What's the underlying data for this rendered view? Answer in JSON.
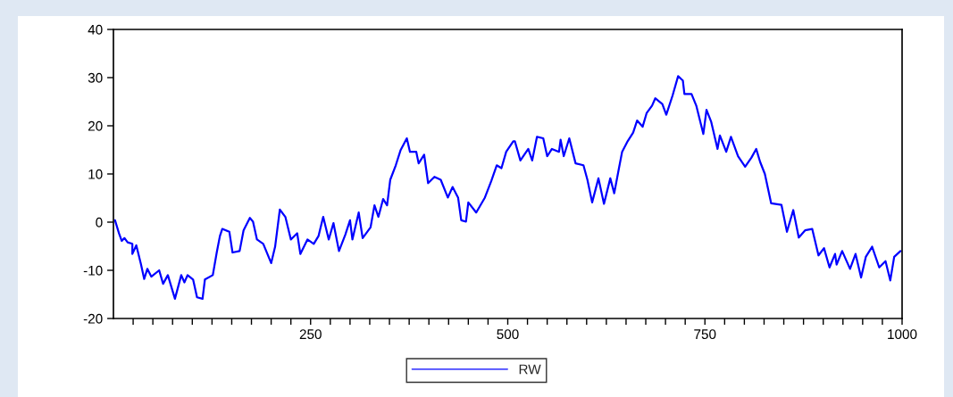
{
  "chart_data": {
    "type": "line",
    "x": [
      2,
      7,
      10.6,
      14,
      18,
      24,
      24,
      29,
      35,
      39,
      43,
      48,
      58,
      63,
      69,
      78,
      86,
      90,
      94,
      101,
      106,
      113,
      116,
      126,
      131,
      135,
      138,
      147,
      151,
      160,
      165,
      173,
      177,
      182,
      190,
      200,
      205,
      211,
      218,
      225,
      233,
      237,
      246,
      254,
      260,
      266,
      273,
      279,
      286,
      294,
      300,
      303,
      311,
      316,
      326,
      331,
      336,
      342,
      347,
      351,
      358,
      364,
      372,
      376,
      384,
      387,
      394,
      399,
      407,
      415,
      424,
      430,
      437,
      441,
      447,
      450,
      460,
      471,
      479,
      486,
      492,
      498,
      507,
      509,
      516,
      526,
      531,
      537,
      545,
      550,
      556,
      565,
      567,
      571,
      578,
      586,
      596,
      601,
      607,
      615,
      622,
      630,
      635,
      641,
      645,
      652,
      659,
      664,
      671,
      676,
      683,
      687,
      696,
      701,
      709,
      716,
      722,
      724,
      733,
      739,
      748,
      752,
      758,
      766,
      769,
      777,
      783,
      792,
      801,
      809,
      815,
      820,
      826,
      834,
      847,
      854,
      862,
      869,
      877,
      886,
      894,
      901,
      908,
      915,
      917,
      924,
      934,
      941,
      948,
      954,
      962,
      971,
      979,
      985,
      990,
      998
    ],
    "series": [
      {
        "name": "RW",
        "color": "#0000ff",
        "values": [
          0.4,
          -2.3,
          -3.9,
          -3.3,
          -4.2,
          -4.5,
          -6.6,
          -4.8,
          -8.8,
          -11.8,
          -9.7,
          -11.3,
          -10.0,
          -12.8,
          -11.0,
          -15.9,
          -11.0,
          -12.5,
          -11.0,
          -11.9,
          -15.6,
          -15.9,
          -11.9,
          -11.0,
          -6.3,
          -2.9,
          -1.4,
          -2.0,
          -6.3,
          -6.0,
          -1.7,
          0.9,
          0.1,
          -3.6,
          -4.5,
          -8.5,
          -5.1,
          2.6,
          1.1,
          -3.6,
          -2.3,
          -6.6,
          -3.6,
          -4.5,
          -2.9,
          1.1,
          -3.6,
          -0.2,
          -6.0,
          -2.6,
          0.4,
          -3.6,
          2.0,
          -3.3,
          -1.1,
          3.5,
          1.1,
          4.8,
          3.5,
          8.8,
          11.8,
          14.9,
          17.4,
          14.6,
          14.6,
          12.2,
          14.0,
          8.1,
          9.4,
          8.8,
          5.1,
          7.3,
          5.1,
          0.4,
          0.1,
          4.1,
          2.0,
          5.1,
          8.5,
          11.8,
          11.2,
          14.6,
          16.8,
          16.8,
          12.8,
          15.2,
          12.8,
          17.7,
          17.4,
          13.7,
          15.2,
          14.6,
          17.1,
          13.7,
          17.4,
          12.2,
          11.8,
          8.8,
          4.1,
          9.1,
          3.8,
          9.1,
          6.0,
          11.2,
          14.6,
          16.8,
          18.6,
          21.1,
          19.8,
          22.6,
          24.2,
          25.7,
          24.5,
          22.3,
          26.3,
          30.3,
          29.4,
          26.6,
          26.6,
          24.2,
          18.3,
          23.3,
          20.8,
          15.2,
          18.0,
          14.6,
          17.7,
          13.7,
          11.5,
          13.4,
          15.2,
          12.5,
          10.0,
          3.9,
          3.6,
          -2.0,
          2.5,
          -3.2,
          -1.7,
          -1.4,
          -6.9,
          -5.4,
          -9.4,
          -6.6,
          -8.8,
          -6.0,
          -9.7,
          -6.6,
          -11.5,
          -7.2,
          -5.1,
          -9.4,
          -8.1,
          -12.1,
          -7.2,
          -6.0
        ]
      }
    ],
    "xlim": [
      0,
      1000
    ],
    "xticks": [
      {
        "value": 25,
        "label": null
      },
      {
        "value": 50,
        "label": null
      },
      {
        "value": 75,
        "label": null
      },
      {
        "value": 100,
        "label": null
      },
      {
        "value": 125,
        "label": null
      },
      {
        "value": 150,
        "label": null
      },
      {
        "value": 175,
        "label": null
      },
      {
        "value": 200,
        "label": null
      },
      {
        "value": 225,
        "label": null
      },
      250,
      {
        "value": 275,
        "label": null
      },
      {
        "value": 300,
        "label": null
      },
      {
        "value": 325,
        "label": null
      },
      {
        "value": 350,
        "label": null
      },
      {
        "value": 375,
        "label": null
      },
      {
        "value": 400,
        "label": null
      },
      {
        "value": 425,
        "label": null
      },
      {
        "value": 450,
        "label": null
      },
      {
        "value": 475,
        "label": null
      },
      500,
      {
        "value": 525,
        "label": null
      },
      {
        "value": 550,
        "label": null
      },
      {
        "value": 575,
        "label": null
      },
      {
        "value": 600,
        "label": null
      },
      {
        "value": 625,
        "label": null
      },
      {
        "value": 650,
        "label": null
      },
      {
        "value": 675,
        "label": null
      },
      {
        "value": 700,
        "label": null
      },
      {
        "value": 725,
        "label": null
      },
      750,
      {
        "value": 775,
        "label": null
      },
      {
        "value": 800,
        "label": null
      },
      {
        "value": 825,
        "label": null
      },
      {
        "value": 850,
        "label": null
      },
      {
        "value": 875,
        "label": null
      },
      {
        "value": 900,
        "label": null
      },
      {
        "value": 925,
        "label": null
      },
      {
        "value": 950,
        "label": null
      },
      {
        "value": 975,
        "label": null
      },
      1000
    ],
    "ylim": [
      -20,
      40
    ],
    "yticks": [
      -20,
      -10,
      0,
      10,
      20,
      30,
      40
    ],
    "grid": false,
    "legend": "bottom",
    "line_style": "solid",
    "marker": "none"
  }
}
